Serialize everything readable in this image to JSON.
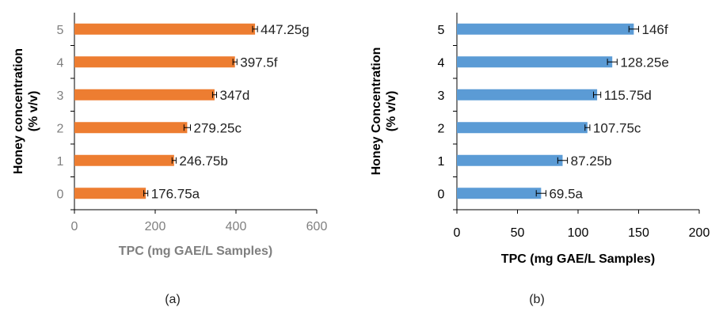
{
  "chart_data": [
    {
      "type": "bar",
      "orientation": "horizontal",
      "panel_label": "(a)",
      "categories": [
        "0",
        "1",
        "2",
        "3",
        "4",
        "5"
      ],
      "values": [
        176.75,
        246.75,
        279.25,
        347,
        397.5,
        447.25
      ],
      "error": [
        5,
        5,
        8,
        5,
        5,
        6
      ],
      "data_labels": [
        "176.75a",
        "246.75b",
        "279.25c",
        "347d",
        "397.5f",
        "447.25g"
      ],
      "xlabel": "TPC (mg GAE/L Samples)",
      "ylabel": [
        "Honey concentration",
        "(% v/v)"
      ],
      "xlim": [
        0,
        600
      ],
      "xticks": [
        "0",
        "200",
        "400",
        "600"
      ],
      "colors": {
        "bar": "#ed7d31",
        "tick": "#7f7f7f",
        "xlabel": "#7f7f7f",
        "ylabel": "#000000"
      },
      "grid": false
    },
    {
      "type": "bar",
      "orientation": "horizontal",
      "panel_label": "(b)",
      "categories": [
        "0",
        "1",
        "2",
        "3",
        "4",
        "5"
      ],
      "values": [
        69.5,
        87.25,
        107.75,
        115.75,
        128.25,
        146
      ],
      "error": [
        4,
        4,
        2,
        3,
        4,
        4
      ],
      "data_labels": [
        "69.5a",
        "87.25b",
        "107.75c",
        "115.75d",
        "128.25e",
        "146f"
      ],
      "xlabel": "TPC (mg GAE/L Samples)",
      "ylabel": [
        "Honey Concentration",
        "(% v/v)"
      ],
      "xlim": [
        0,
        200
      ],
      "xticks": [
        "0",
        "50",
        "100",
        "150",
        "200"
      ],
      "colors": {
        "bar": "#5b9bd5",
        "tick": "#000000",
        "xlabel": "#000000",
        "ylabel": "#000000"
      },
      "grid": false
    }
  ]
}
